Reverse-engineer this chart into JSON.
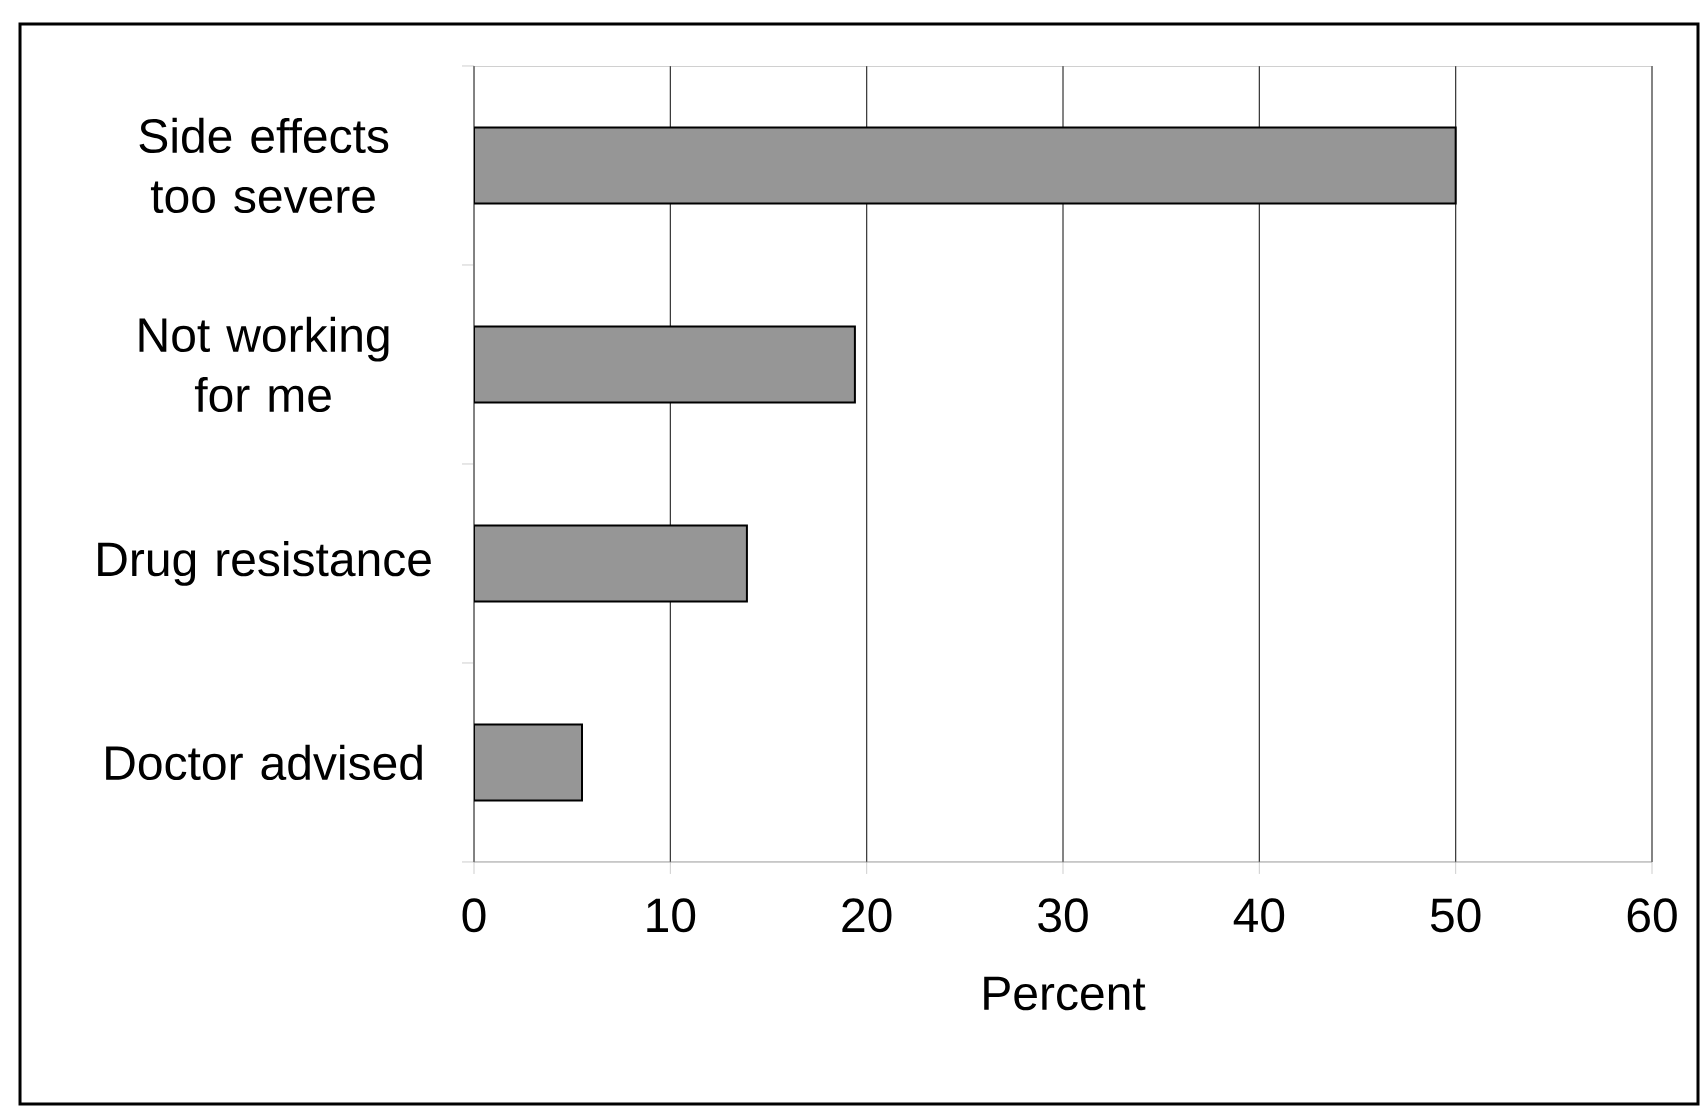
{
  "chart_data": {
    "type": "bar",
    "orientation": "horizontal",
    "xlabel": "Percent",
    "categories": [
      "Side effects too severe",
      "Not working for me",
      "Drug resistance",
      "Doctor advised"
    ],
    "values": [
      50,
      19.4,
      13.9,
      5.5
    ],
    "color": "#969696",
    "xlim": [
      0,
      60
    ],
    "xticks": [
      0,
      10,
      20,
      30,
      40,
      50,
      60
    ],
    "grid": "x"
  }
}
